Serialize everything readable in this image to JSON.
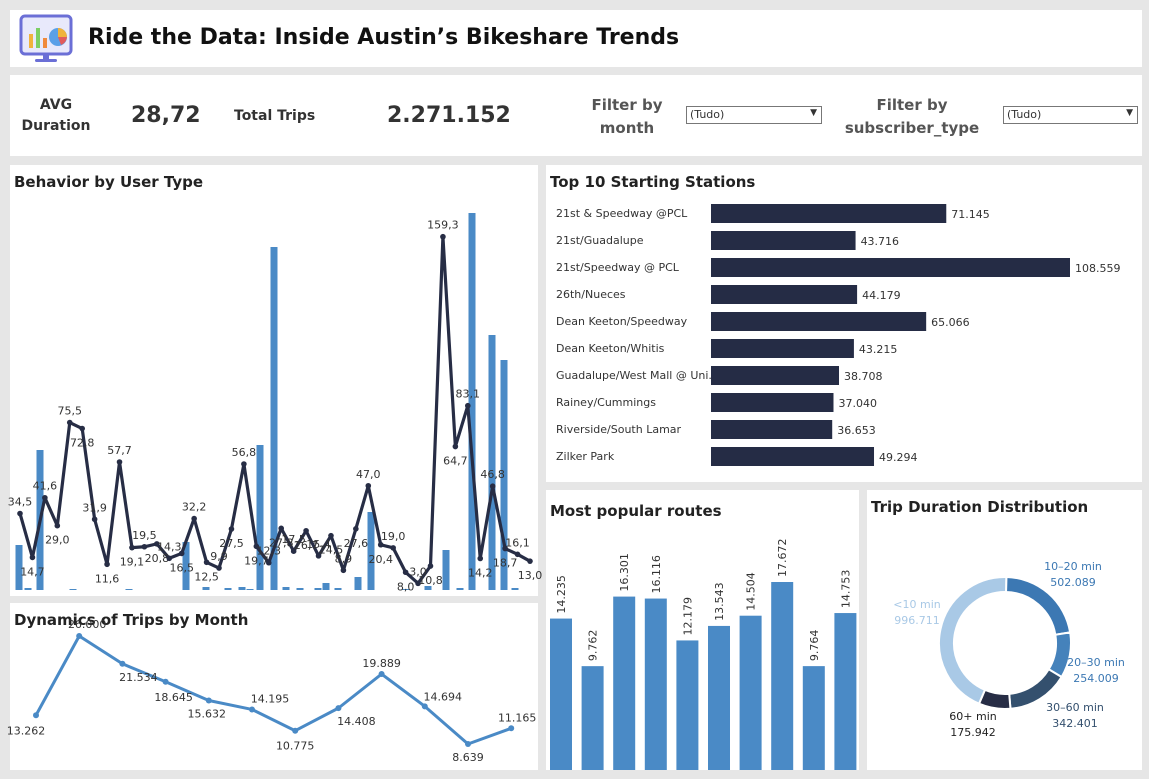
{
  "header": {
    "title": "Ride the Data: Inside Austin’s Bikeshare Trends",
    "icon": "dashboard-chart-icon"
  },
  "kpis": {
    "avg_duration_label_1": "AVG",
    "avg_duration_label_2": "Duration",
    "avg_duration_value": "28,72",
    "total_trips_label": "Total Trips",
    "total_trips_value": "2.271.152"
  },
  "filters": {
    "month": {
      "label_1": "Filter by",
      "label_2": "month",
      "value": "(Tudo)"
    },
    "subscriber": {
      "label_1": "Filter by",
      "label_2": "subscriber_type",
      "value": "(Tudo)"
    }
  },
  "colors": {
    "bar_blue": "#4a8ac6",
    "line_dark": "#272d45",
    "station_bar": "#252c45",
    "donut_light": "#a9c9e6",
    "donut_mid": "#3c78b3",
    "donut_dark": "#34506e"
  },
  "behavior": {
    "title": "Behavior by User Type",
    "chart_data": {
      "type": "bar+line",
      "bars": [
        18,
        2,
        94,
        0,
        0,
        0,
        0,
        0,
        0,
        0,
        0,
        0,
        0,
        0,
        0,
        0,
        0,
        0,
        0,
        0,
        0,
        0,
        0,
        0,
        0,
        0,
        0,
        0,
        0,
        0,
        0,
        0,
        0,
        0,
        0,
        0,
        0,
        0,
        0,
        0,
        0,
        0,
        0,
        0,
        0,
        0,
        0,
        0,
        0,
        0,
        0,
        0,
        0,
        0,
        0,
        0,
        0,
        0,
        0,
        0,
        0,
        0,
        0,
        0,
        0,
        0,
        0,
        0,
        0,
        0,
        0,
        0,
        0,
        0
      ],
      "bar_series": [
        12,
        1,
        80,
        0,
        0,
        0,
        0,
        0,
        0,
        0,
        0,
        0,
        0.5,
        0,
        0,
        0,
        0,
        0,
        0,
        0,
        0,
        0,
        0,
        0,
        0,
        0,
        0,
        0.3,
        0,
        0,
        0,
        0,
        0,
        0.3,
        0,
        0,
        0,
        0,
        0,
        0,
        0,
        0,
        0,
        0,
        1,
        0,
        0,
        0,
        0,
        0,
        0,
        0,
        0,
        0,
        0,
        0,
        0,
        0,
        0,
        0,
        0,
        0,
        0,
        0,
        0,
        0,
        0,
        0,
        0,
        0,
        0,
        0,
        0,
        0
      ],
      "line_labels": [
        "34,5",
        "14,7",
        "41,6",
        "29,0",
        "75,5",
        "72,8",
        "31,9",
        "11,6",
        "57,7",
        "19,1",
        "19,5",
        "20,8",
        "14,3",
        "16,5",
        "32,2",
        "12,5",
        "9,9",
        "27,5",
        "56,8",
        "19,7",
        "12,3",
        "27,8",
        "17,5",
        "26,7",
        "15,4",
        "24,5",
        "8,9",
        "27,6",
        "47,0",
        "20,4",
        "19,0",
        "8,0",
        "3,0",
        "10,8",
        "159,3",
        "64,7",
        "83,1",
        "14,2",
        "46,8",
        "18,7",
        "16,1",
        "13,0"
      ],
      "line_values": [
        34.5,
        14.7,
        41.6,
        29.0,
        75.5,
        72.8,
        31.9,
        11.6,
        57.7,
        19.1,
        19.5,
        20.8,
        14.3,
        16.5,
        32.2,
        12.5,
        9.9,
        27.5,
        56.8,
        19.7,
        12.3,
        27.8,
        17.5,
        26.7,
        15.4,
        24.5,
        8.9,
        27.6,
        47.0,
        20.4,
        19.0,
        8.0,
        3.0,
        10.8,
        159.3,
        64.7,
        83.1,
        14.2,
        46.8,
        18.7,
        16.1,
        13.0
      ],
      "bar_values": [
        10,
        1,
        62,
        0,
        0,
        0,
        0,
        0.5,
        0,
        0,
        0.5,
        0,
        0,
        0,
        0,
        0,
        44,
        1,
        0,
        0,
        0.5,
        0,
        0.5,
        0,
        0,
        2,
        0,
        0,
        0.5,
        0,
        0.5,
        1,
        0,
        0,
        0,
        38,
        0,
        79,
        1,
        0,
        0,
        0,
        0,
        1,
        0,
        0,
        0,
        0.5,
        0,
        3,
        0,
        12,
        0,
        0,
        0,
        0,
        6,
        0,
        0,
        3,
        2,
        0,
        0,
        90,
        0,
        2,
        27,
        0,
        3,
        0,
        42,
        39,
        0
      ],
      "bars_full": [
        18,
        2,
        94,
        0,
        0,
        0,
        1,
        0,
        0,
        0,
        1,
        0,
        0,
        0,
        0,
        0,
        0,
        0,
        0,
        0,
        0,
        0,
        0,
        0,
        0,
        0,
        0,
        0,
        0,
        0,
        0,
        0,
        0,
        0,
        0,
        0,
        0,
        0,
        0,
        0,
        0,
        0,
        0,
        0,
        0,
        0,
        0,
        0,
        0,
        0,
        0,
        0,
        0,
        0,
        0,
        0,
        0,
        0,
        0,
        0,
        0,
        0,
        0,
        0,
        0,
        0,
        0,
        0,
        0,
        0,
        0,
        0,
        0,
        0
      ]
    }
  },
  "stations": {
    "title": "Top 10 Starting Stations",
    "chart_data": {
      "type": "bar",
      "categories": [
        "21st & Speedway @PCL",
        "21st/Guadalupe",
        "21st/Speedway @ PCL",
        "26th/Nueces",
        "Dean Keeton/Speedway",
        "Dean Keeton/Whitis",
        "Guadalupe/West Mall @ Uni...",
        "Rainey/Cummings",
        "Riverside/South Lamar",
        "Zilker Park"
      ],
      "values": [
        71145,
        43716,
        108559,
        44179,
        65066,
        43215,
        38708,
        37040,
        36653,
        49294
      ],
      "labels": [
        "71.145",
        "43.716",
        "108.559",
        "44.179",
        "65.066",
        "43.215",
        "38.708",
        "37.040",
        "36.653",
        "49.294"
      ]
    }
  },
  "dynamics": {
    "title": "Dynamics of Trips by Month",
    "chart_data": {
      "type": "line",
      "values": [
        13262,
        26000,
        21534,
        18645,
        15632,
        14195,
        10775,
        14408,
        19889,
        14694,
        8639,
        11165
      ],
      "labels": [
        "13.262",
        "26.000",
        "21.534",
        "18.645",
        "15.632",
        "14.195",
        "10.775",
        "14.408",
        "19.889",
        "14.694",
        "8.639",
        "11.165"
      ]
    }
  },
  "routes": {
    "title": "Most popular routes",
    "chart_data": {
      "type": "bar",
      "values": [
        14235,
        9762,
        16301,
        16116,
        12179,
        13543,
        14504,
        17672,
        9764,
        14753
      ],
      "labels": [
        "14.235",
        "9.762",
        "16.301",
        "16.116",
        "12.179",
        "13.543",
        "14.504",
        "17.672",
        "9.764",
        "14.753"
      ]
    }
  },
  "duration": {
    "title": "Trip Duration Distribution",
    "chart_data": {
      "type": "pie",
      "segments": [
        {
          "name": "10–20 min",
          "label": "502.089",
          "value": 502089
        },
        {
          "name": "20–30 min",
          "label": "254.009",
          "value": 254009
        },
        {
          "name": "30–60 min",
          "label": "342.401",
          "value": 342401
        },
        {
          "name": "60+ min",
          "label": "175.942",
          "value": 175942
        },
        {
          "name": "<10 min",
          "label": "996.711",
          "value": 996711
        }
      ]
    }
  }
}
